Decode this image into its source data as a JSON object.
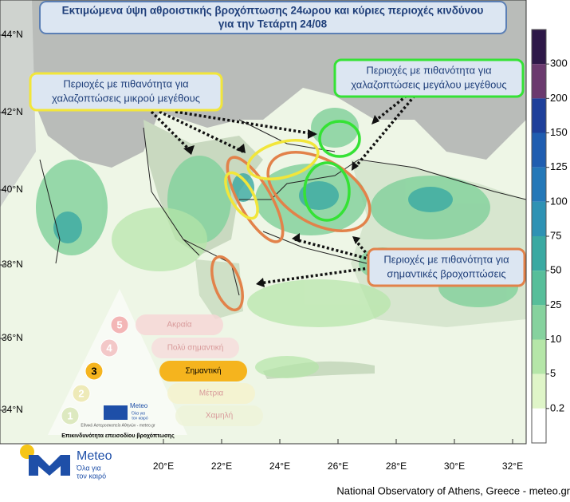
{
  "title": [
    "Εκτιμώμενα ύψη αθροιστικής βροχόπτωσης 24ωρου και κύριες περιοχές κινδύνου",
    "για την Τετάρτη 24/08"
  ],
  "callouts": [
    {
      "lines": [
        "Περιοχές με πιθανότητα για",
        "χαλαζοπτώσεις μικρού μεγέθους"
      ]
    },
    {
      "lines": [
        "Περιοχές με πιθανότητα για",
        "χαλαζοπτώσεις μεγάλου μεγέθους"
      ]
    },
    {
      "lines": [
        "Περιοχές με πιθανότητα για",
        "σημαντικές βροχοπτώσεις"
      ]
    }
  ],
  "axes": {
    "lat_labels": [
      "44°N",
      "42°N",
      "40°N",
      "38°N",
      "36°N",
      "34°N"
    ],
    "lon_labels": [
      "20°E",
      "22°E",
      "24°E",
      "26°E",
      "28°E",
      "30°E",
      "32°E"
    ]
  },
  "legend": {
    "labels": [
      300,
      200,
      150,
      125,
      100,
      75,
      50,
      25,
      10,
      5,
      0.2
    ],
    "colors": [
      "#2e1848",
      "#6b3a6e",
      "#1e3f9a",
      "#1f5db0",
      "#2478b8",
      "#2e92b4",
      "#3aa9a2",
      "#57be9a",
      "#86d29e",
      "#b5e6a8",
      "#dff5c8",
      "#ffffff"
    ]
  },
  "risk_scale": {
    "levels": [
      {
        "number": "5",
        "label": "Ακραία"
      },
      {
        "number": "4",
        "label": "Πολύ σημαντική"
      },
      {
        "number": "3",
        "label": "Σημαντική"
      },
      {
        "number": "2",
        "label": "Μέτρια"
      },
      {
        "number": "1",
        "label": "Χαμηλή"
      }
    ],
    "caption": "Επικινδυνότητα επεισοδίου βροχόπτωσης",
    "logo_name": "Meteo",
    "logo_slogan": [
      "Όλα για",
      "τον καιρό"
    ],
    "logo_org": "Εθνικό Αστεροσκοπείο Αθηνών - meteo.gr"
  },
  "logo": {
    "name": "Meteo",
    "slogan": [
      "Όλα για",
      "τον καιρό"
    ]
  },
  "footer": "National Observatory of Athens, Greece - meteo.gr"
}
